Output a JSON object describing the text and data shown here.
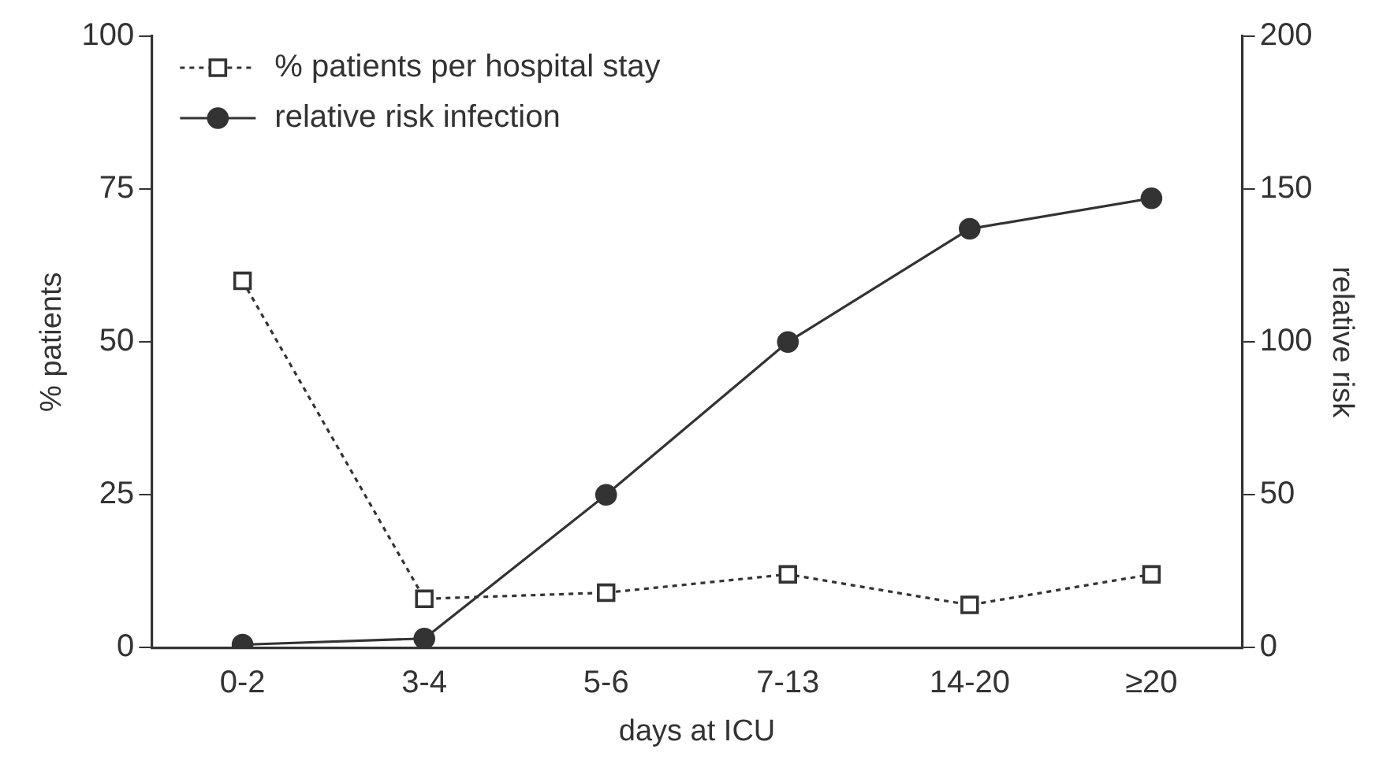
{
  "chart_data": {
    "type": "line",
    "xlabel": "days at ICU",
    "ylabel": "% patients",
    "y2label": "relative risk",
    "categories": [
      "0-2",
      "3-4",
      "5-6",
      "7-13",
      "14-20",
      "≥20"
    ],
    "series": [
      {
        "name": "% patients per hospital stay",
        "color": "#333333",
        "values": [
          60,
          8,
          9,
          12,
          7,
          12
        ],
        "marker": "square",
        "line_style": "dotted"
      },
      {
        "name": "relative risk infection",
        "color": "#333333",
        "values": [
          1,
          3,
          50,
          100,
          137,
          147
        ],
        "marker": "circle",
        "line_style": "solid",
        "axis": "y2"
      }
    ],
    "ylim": [
      0,
      100
    ],
    "yticks": [
      0,
      25,
      50,
      75,
      100
    ],
    "y2lim": [
      0,
      200
    ],
    "y2ticks": [
      0,
      50,
      100,
      150,
      200
    ],
    "grid": false,
    "legend": "top left"
  }
}
